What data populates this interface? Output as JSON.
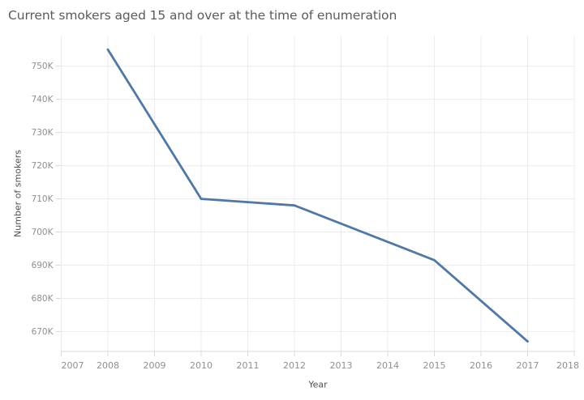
{
  "chart_data": {
    "type": "line",
    "title": "Current smokers aged 15 and over at the time of enumeration",
    "xlabel": "Year",
    "ylabel": "Number of smokers",
    "series": [
      {
        "name": "Number of smokers",
        "x": [
          2008,
          2010,
          2012,
          2015,
          2017
        ],
        "y": [
          755000,
          710000,
          708000,
          691500,
          667000
        ]
      }
    ],
    "xlim": [
      2007,
      2018
    ],
    "ylim": [
      664000,
      759200
    ],
    "x_ticks": [
      {
        "value": 2007,
        "label": "2007"
      },
      {
        "value": 2008,
        "label": "2008"
      },
      {
        "value": 2009,
        "label": "2009"
      },
      {
        "value": 2010,
        "label": "2010"
      },
      {
        "value": 2011,
        "label": "2011"
      },
      {
        "value": 2012,
        "label": "2012"
      },
      {
        "value": 2013,
        "label": "2013"
      },
      {
        "value": 2014,
        "label": "2014"
      },
      {
        "value": 2015,
        "label": "2015"
      },
      {
        "value": 2016,
        "label": "2016"
      },
      {
        "value": 2017,
        "label": "2017"
      },
      {
        "value": 2018,
        "label": "2018"
      }
    ],
    "y_ticks": [
      {
        "value": 670000,
        "label": "670K"
      },
      {
        "value": 680000,
        "label": "680K"
      },
      {
        "value": 690000,
        "label": "690K"
      },
      {
        "value": 700000,
        "label": "700K"
      },
      {
        "value": 710000,
        "label": "710K"
      },
      {
        "value": 720000,
        "label": "720K"
      },
      {
        "value": 730000,
        "label": "730K"
      },
      {
        "value": 740000,
        "label": "740K"
      },
      {
        "value": 750000,
        "label": "750K"
      }
    ],
    "grid": true,
    "legend": false,
    "colors": {
      "line": "#4e79a7",
      "grid": "#ececec",
      "axis": "#d9d9d9",
      "tick_label": "#8f8f8f",
      "axis_title": "#4f4f4f",
      "title": "#5b5b5b",
      "background": "#ffffff"
    }
  }
}
